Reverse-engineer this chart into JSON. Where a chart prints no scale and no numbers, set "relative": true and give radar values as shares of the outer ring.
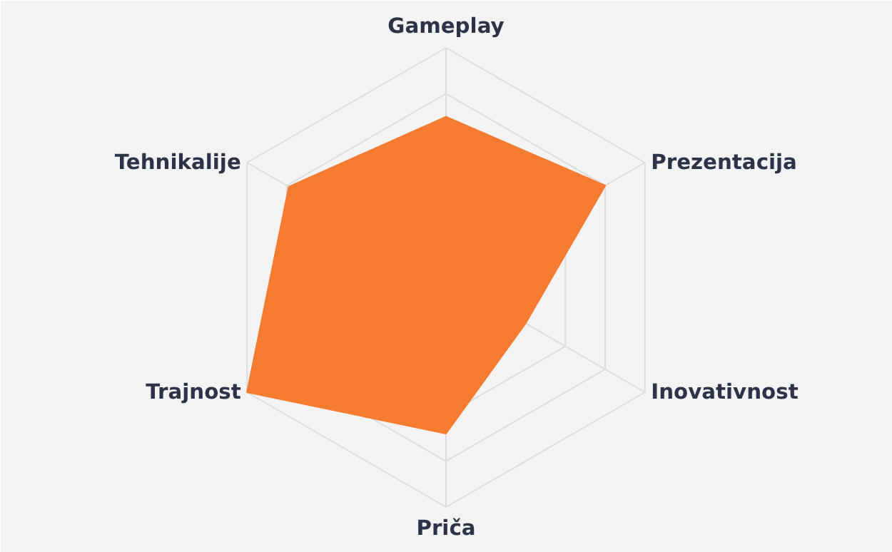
{
  "chart_data": {
    "type": "radar",
    "relative": true,
    "grid": true,
    "categories": [
      "Gameplay",
      "Prezentacija",
      "Inovativnost",
      "Priča",
      "Trajnost",
      "Tehnikalije"
    ],
    "series": [
      {
        "color": "#f47b30",
        "values": [
          0.7,
          0.8,
          0.4,
          0.68,
          1,
          0.79
        ]
      }
    ]
  }
}
